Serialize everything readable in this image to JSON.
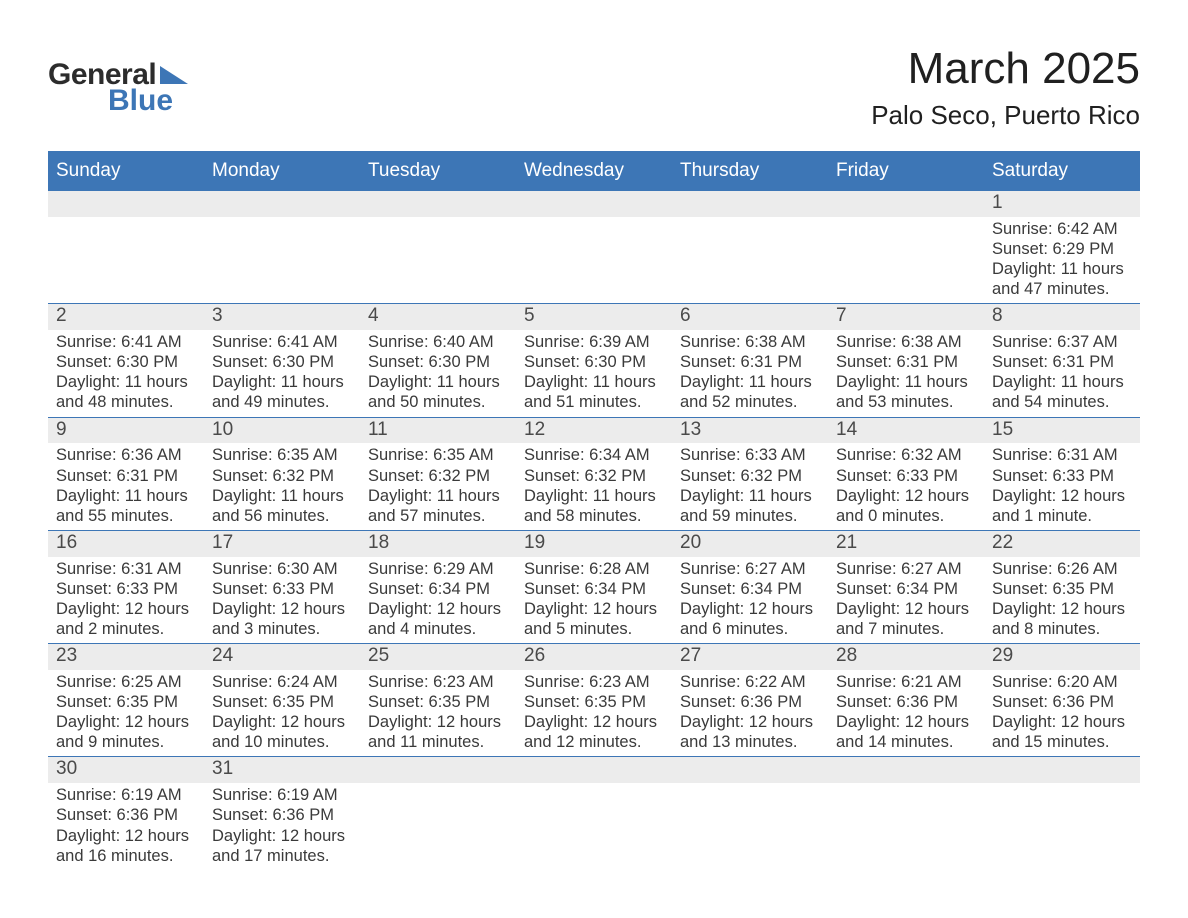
{
  "brand": {
    "general": "General",
    "blue": "Blue",
    "triangle_color": "#3d76b6"
  },
  "title": "March 2025",
  "location": "Palo Seco, Puerto Rico",
  "colors": {
    "header_bg": "#3d76b6",
    "header_text": "#ffffff",
    "daynum_bg": "#ececec",
    "body_text": "#3a3a3a",
    "row_border": "#3d76b6"
  },
  "typography": {
    "title_fontsize": 44,
    "location_fontsize": 26,
    "header_fontsize": 19,
    "body_fontsize": 16.5
  },
  "weekdays": [
    "Sunday",
    "Monday",
    "Tuesday",
    "Wednesday",
    "Thursday",
    "Friday",
    "Saturday"
  ],
  "weeks": [
    [
      null,
      null,
      null,
      null,
      null,
      null,
      {
        "n": "1",
        "sunrise": "Sunrise: 6:42 AM",
        "sunset": "Sunset: 6:29 PM",
        "daylight": "Daylight: 11 hours and 47 minutes."
      }
    ],
    [
      {
        "n": "2",
        "sunrise": "Sunrise: 6:41 AM",
        "sunset": "Sunset: 6:30 PM",
        "daylight": "Daylight: 11 hours and 48 minutes."
      },
      {
        "n": "3",
        "sunrise": "Sunrise: 6:41 AM",
        "sunset": "Sunset: 6:30 PM",
        "daylight": "Daylight: 11 hours and 49 minutes."
      },
      {
        "n": "4",
        "sunrise": "Sunrise: 6:40 AM",
        "sunset": "Sunset: 6:30 PM",
        "daylight": "Daylight: 11 hours and 50 minutes."
      },
      {
        "n": "5",
        "sunrise": "Sunrise: 6:39 AM",
        "sunset": "Sunset: 6:30 PM",
        "daylight": "Daylight: 11 hours and 51 minutes."
      },
      {
        "n": "6",
        "sunrise": "Sunrise: 6:38 AM",
        "sunset": "Sunset: 6:31 PM",
        "daylight": "Daylight: 11 hours and 52 minutes."
      },
      {
        "n": "7",
        "sunrise": "Sunrise: 6:38 AM",
        "sunset": "Sunset: 6:31 PM",
        "daylight": "Daylight: 11 hours and 53 minutes."
      },
      {
        "n": "8",
        "sunrise": "Sunrise: 6:37 AM",
        "sunset": "Sunset: 6:31 PM",
        "daylight": "Daylight: 11 hours and 54 minutes."
      }
    ],
    [
      {
        "n": "9",
        "sunrise": "Sunrise: 6:36 AM",
        "sunset": "Sunset: 6:31 PM",
        "daylight": "Daylight: 11 hours and 55 minutes."
      },
      {
        "n": "10",
        "sunrise": "Sunrise: 6:35 AM",
        "sunset": "Sunset: 6:32 PM",
        "daylight": "Daylight: 11 hours and 56 minutes."
      },
      {
        "n": "11",
        "sunrise": "Sunrise: 6:35 AM",
        "sunset": "Sunset: 6:32 PM",
        "daylight": "Daylight: 11 hours and 57 minutes."
      },
      {
        "n": "12",
        "sunrise": "Sunrise: 6:34 AM",
        "sunset": "Sunset: 6:32 PM",
        "daylight": "Daylight: 11 hours and 58 minutes."
      },
      {
        "n": "13",
        "sunrise": "Sunrise: 6:33 AM",
        "sunset": "Sunset: 6:32 PM",
        "daylight": "Daylight: 11 hours and 59 minutes."
      },
      {
        "n": "14",
        "sunrise": "Sunrise: 6:32 AM",
        "sunset": "Sunset: 6:33 PM",
        "daylight": "Daylight: 12 hours and 0 minutes."
      },
      {
        "n": "15",
        "sunrise": "Sunrise: 6:31 AM",
        "sunset": "Sunset: 6:33 PM",
        "daylight": "Daylight: 12 hours and 1 minute."
      }
    ],
    [
      {
        "n": "16",
        "sunrise": "Sunrise: 6:31 AM",
        "sunset": "Sunset: 6:33 PM",
        "daylight": "Daylight: 12 hours and 2 minutes."
      },
      {
        "n": "17",
        "sunrise": "Sunrise: 6:30 AM",
        "sunset": "Sunset: 6:33 PM",
        "daylight": "Daylight: 12 hours and 3 minutes."
      },
      {
        "n": "18",
        "sunrise": "Sunrise: 6:29 AM",
        "sunset": "Sunset: 6:34 PM",
        "daylight": "Daylight: 12 hours and 4 minutes."
      },
      {
        "n": "19",
        "sunrise": "Sunrise: 6:28 AM",
        "sunset": "Sunset: 6:34 PM",
        "daylight": "Daylight: 12 hours and 5 minutes."
      },
      {
        "n": "20",
        "sunrise": "Sunrise: 6:27 AM",
        "sunset": "Sunset: 6:34 PM",
        "daylight": "Daylight: 12 hours and 6 minutes."
      },
      {
        "n": "21",
        "sunrise": "Sunrise: 6:27 AM",
        "sunset": "Sunset: 6:34 PM",
        "daylight": "Daylight: 12 hours and 7 minutes."
      },
      {
        "n": "22",
        "sunrise": "Sunrise: 6:26 AM",
        "sunset": "Sunset: 6:35 PM",
        "daylight": "Daylight: 12 hours and 8 minutes."
      }
    ],
    [
      {
        "n": "23",
        "sunrise": "Sunrise: 6:25 AM",
        "sunset": "Sunset: 6:35 PM",
        "daylight": "Daylight: 12 hours and 9 minutes."
      },
      {
        "n": "24",
        "sunrise": "Sunrise: 6:24 AM",
        "sunset": "Sunset: 6:35 PM",
        "daylight": "Daylight: 12 hours and 10 minutes."
      },
      {
        "n": "25",
        "sunrise": "Sunrise: 6:23 AM",
        "sunset": "Sunset: 6:35 PM",
        "daylight": "Daylight: 12 hours and 11 minutes."
      },
      {
        "n": "26",
        "sunrise": "Sunrise: 6:23 AM",
        "sunset": "Sunset: 6:35 PM",
        "daylight": "Daylight: 12 hours and 12 minutes."
      },
      {
        "n": "27",
        "sunrise": "Sunrise: 6:22 AM",
        "sunset": "Sunset: 6:36 PM",
        "daylight": "Daylight: 12 hours and 13 minutes."
      },
      {
        "n": "28",
        "sunrise": "Sunrise: 6:21 AM",
        "sunset": "Sunset: 6:36 PM",
        "daylight": "Daylight: 12 hours and 14 minutes."
      },
      {
        "n": "29",
        "sunrise": "Sunrise: 6:20 AM",
        "sunset": "Sunset: 6:36 PM",
        "daylight": "Daylight: 12 hours and 15 minutes."
      }
    ],
    [
      {
        "n": "30",
        "sunrise": "Sunrise: 6:19 AM",
        "sunset": "Sunset: 6:36 PM",
        "daylight": "Daylight: 12 hours and 16 minutes."
      },
      {
        "n": "31",
        "sunrise": "Sunrise: 6:19 AM",
        "sunset": "Sunset: 6:36 PM",
        "daylight": "Daylight: 12 hours and 17 minutes."
      },
      null,
      null,
      null,
      null,
      null
    ]
  ]
}
